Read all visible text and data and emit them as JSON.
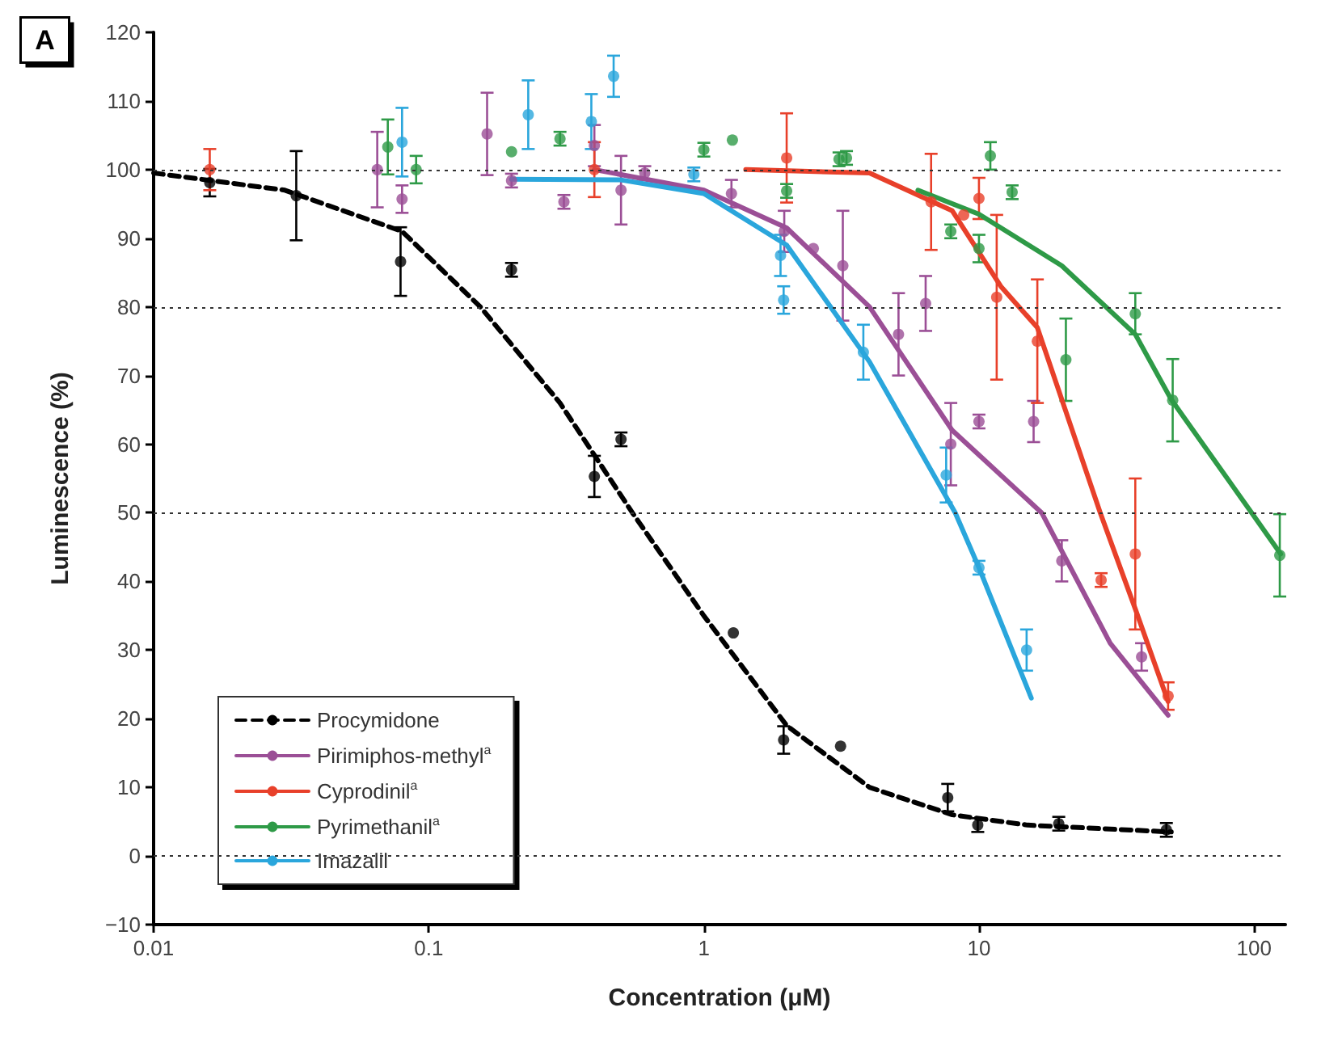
{
  "chart_data": {
    "type": "scatter",
    "xlabel": "Concentration (μM)",
    "ylabel": "Luminescence (%)",
    "annotations": [
      "A"
    ],
    "log": "x",
    "xlim": [
      0.01,
      130
    ],
    "xticks": [
      0.01,
      0.1,
      1,
      10,
      100
    ],
    "ylim": [
      -10,
      120
    ],
    "yticks": [
      {
        "value": -10,
        "label": "−10"
      },
      0,
      10,
      20,
      30,
      40,
      50,
      60,
      70,
      80,
      90,
      100,
      110,
      120
    ],
    "grid": false,
    "legend": "bottom left",
    "marker": "circle",
    "ref_lines": [
      {
        "axis": "y",
        "value": 100,
        "line_style": "dotted",
        "color": "#333333"
      },
      {
        "axis": "y",
        "value": 80,
        "line_style": "dotted",
        "color": "#333333"
      },
      {
        "axis": "y",
        "value": 50,
        "line_style": "dotted",
        "color": "#333333"
      },
      {
        "axis": "y",
        "value": 0,
        "line_style": "dotted",
        "color": "#333333"
      }
    ],
    "series": [
      {
        "name": "Procymidone",
        "type": "line",
        "marker": "none",
        "line_style": "dashed",
        "color": "#000000",
        "x": [
          0.01,
          0.03,
          0.08,
          0.154,
          0.3,
          0.55,
          1,
          2,
          4,
          8,
          15,
          50
        ],
        "values": [
          99.5,
          97,
          91,
          80,
          66,
          50,
          35,
          19,
          10,
          6,
          4.5,
          3.5
        ]
      },
      {
        "name": "Pirimiphos-methyl$^{a}$",
        "type": "line",
        "marker": "none",
        "line_style": "solid",
        "color": "#9b4f96",
        "x": [
          0.4,
          1,
          2,
          4,
          8,
          16.9,
          30,
          48.7
        ],
        "values": [
          100,
          97,
          91.5,
          80,
          62,
          50,
          31,
          20.5
        ]
      },
      {
        "name": "Cyprodinil$^{a}$",
        "type": "line",
        "marker": "none",
        "line_style": "solid",
        "color": "#e8402a",
        "x": [
          1.42,
          4,
          8,
          12,
          16.3,
          27.6,
          37,
          48.7
        ],
        "values": [
          100,
          99.5,
          94,
          83,
          77,
          50,
          36,
          22.5
        ]
      },
      {
        "name": "Pyrimethanil$^{a}$",
        "type": "line",
        "marker": "none",
        "line_style": "solid",
        "color": "#2e9a47",
        "x": [
          6,
          10,
          20,
          37,
          50,
          98,
          125
        ],
        "values": [
          97,
          93.5,
          86,
          76,
          66.5,
          50,
          44
        ]
      },
      {
        "name": "Imazalil",
        "type": "line",
        "marker": "none",
        "line_style": "solid",
        "color": "#2aa6dc",
        "x": [
          0.2,
          0.5,
          1,
          2,
          4,
          8.2,
          10,
          15.5
        ],
        "values": [
          98.6,
          98.5,
          96.5,
          89,
          72,
          50,
          42,
          23
        ]
      },
      {
        "color": "#000000",
        "x": [
          0.016,
          0.033,
          0.079,
          0.2,
          0.4,
          0.5,
          1.28,
          1.95,
          3.14,
          7.7,
          9.9,
          19.5,
          48
        ],
        "values": [
          98.1,
          96.2,
          86.6,
          85.4,
          55.3,
          60.7,
          32.5,
          16.9,
          16,
          8.5,
          4.5,
          4.7,
          3.8
        ],
        "errors": [
          2,
          6.5,
          5,
          1,
          3,
          1,
          null,
          2,
          null,
          2,
          1,
          1,
          1
        ]
      },
      {
        "color": "#9b4f96",
        "x": [
          0.065,
          0.08,
          0.163,
          0.2,
          0.31,
          0.4,
          0.5,
          0.61,
          1.26,
          1.96,
          2.5,
          3.2,
          5.1,
          6.4,
          7.9,
          10,
          15.8,
          20,
          39
        ],
        "values": [
          100,
          95.7,
          105.2,
          98.4,
          95.3,
          103.5,
          97,
          99.5,
          96.5,
          91,
          88.5,
          86,
          76,
          80.5,
          60,
          63.3,
          63.3,
          43,
          29
        ],
        "errors": [
          5.5,
          2,
          6,
          1,
          1,
          3,
          5,
          1,
          2,
          3,
          null,
          8,
          6,
          4,
          6,
          1,
          3,
          3,
          2
        ]
      },
      {
        "color": "#e8402a",
        "x": [
          0.016,
          0.4,
          2,
          6.7,
          8.8,
          10,
          11.6,
          16.3,
          27.8,
          37,
          48.7
        ],
        "values": [
          100,
          100,
          101.7,
          95.3,
          93.4,
          95.8,
          81.4,
          75,
          40.2,
          44,
          23.3
        ],
        "errors": [
          3,
          4,
          6.5,
          7,
          null,
          3,
          12,
          9,
          1,
          11,
          2
        ]
      },
      {
        "color": "#2e9a47",
        "x": [
          0.071,
          0.09,
          0.2,
          0.3,
          1,
          1.27,
          2,
          3.1,
          3.3,
          7.9,
          10,
          11,
          13.2,
          20.7,
          37,
          50.6,
          124
        ],
        "values": [
          103.3,
          100,
          102.6,
          104.5,
          102.9,
          104.3,
          96.9,
          101.5,
          101.7,
          91,
          88.5,
          102,
          96.7,
          72.3,
          79,
          66.4,
          43.8
        ],
        "errors": [
          4,
          2,
          null,
          1,
          1,
          null,
          1,
          1,
          1,
          1,
          2,
          2,
          1,
          6,
          3,
          6,
          6
        ]
      },
      {
        "color": "#2aa6dc",
        "x": [
          0.08,
          0.23,
          0.39,
          0.47,
          0.92,
          1.9,
          1.95,
          3.8,
          7.6,
          10,
          14.9
        ],
        "values": [
          104,
          108,
          107,
          113.6,
          99.3,
          87.5,
          81,
          73.4,
          55.5,
          42,
          30
        ],
        "errors": [
          5,
          5,
          4,
          3,
          1,
          3,
          2,
          4,
          4,
          1,
          3
        ]
      }
    ]
  }
}
